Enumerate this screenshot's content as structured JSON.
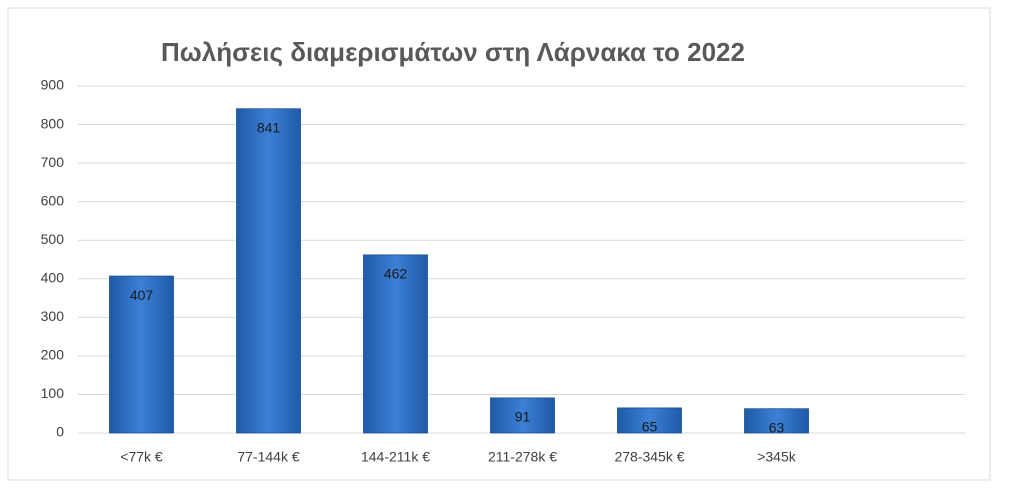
{
  "chart_data": {
    "type": "bar",
    "title": "Πωλήσεις διαμερισμάτων στη Λάρνακα το 2022",
    "categories": [
      "<77k €",
      "77-144k €",
      "144-211k €",
      "211-278k €",
      "278-345k €",
      ">345k"
    ],
    "values": [
      407,
      841,
      462,
      91,
      65,
      63
    ],
    "color": "#2e6fc0",
    "ylim": [
      0,
      900
    ],
    "yticks": [
      0,
      100,
      200,
      300,
      400,
      500,
      600,
      700,
      800,
      900
    ],
    "grid": true
  }
}
